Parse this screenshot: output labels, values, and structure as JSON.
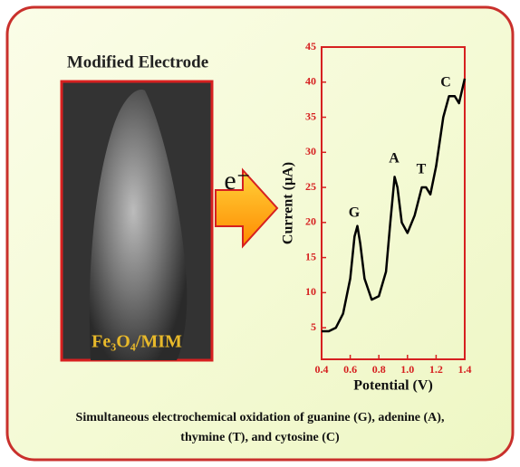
{
  "header": {
    "title": "Modified Electrode"
  },
  "electrode": {
    "label": "Fe₃O₄/MIM"
  },
  "arrow": {
    "label": "e⁻"
  },
  "chart_data": {
    "type": "line",
    "x": [
      0.4,
      0.45,
      0.5,
      0.55,
      0.6,
      0.63,
      0.65,
      0.67,
      0.7,
      0.75,
      0.8,
      0.85,
      0.88,
      0.91,
      0.93,
      0.96,
      1.0,
      1.05,
      1.1,
      1.13,
      1.16,
      1.2,
      1.25,
      1.29,
      1.33,
      1.36,
      1.4
    ],
    "series": [
      {
        "color": "#000000",
        "values": [
          4.5,
          4.5,
          5,
          7,
          12,
          18,
          19.5,
          17,
          12,
          9,
          9.5,
          13,
          20,
          26.5,
          25,
          20,
          18.5,
          21,
          25,
          25,
          24,
          28,
          35,
          38,
          38,
          37,
          40.5
        ]
      }
    ],
    "xlabel": "Potential (V)",
    "ylabel": "Current (µA)",
    "xlim": [
      0.4,
      1.4
    ],
    "xticks": [
      0.4,
      0.6,
      0.8,
      {
        "value": 1,
        "label": "1.0"
      },
      1.2,
      1.4
    ],
    "ylim": [
      0.5,
      45
    ],
    "yticks": [
      5,
      10,
      15,
      20,
      25,
      30,
      35,
      40,
      45
    ],
    "axis_color": "#d62020",
    "annotations": [
      "G",
      "A",
      "T",
      "C"
    ]
  },
  "caption": [
    "Simultaneous electrochemical oxidation of guanine (G), adenine (A),",
    "thymine (T), and cytosine (C)"
  ]
}
